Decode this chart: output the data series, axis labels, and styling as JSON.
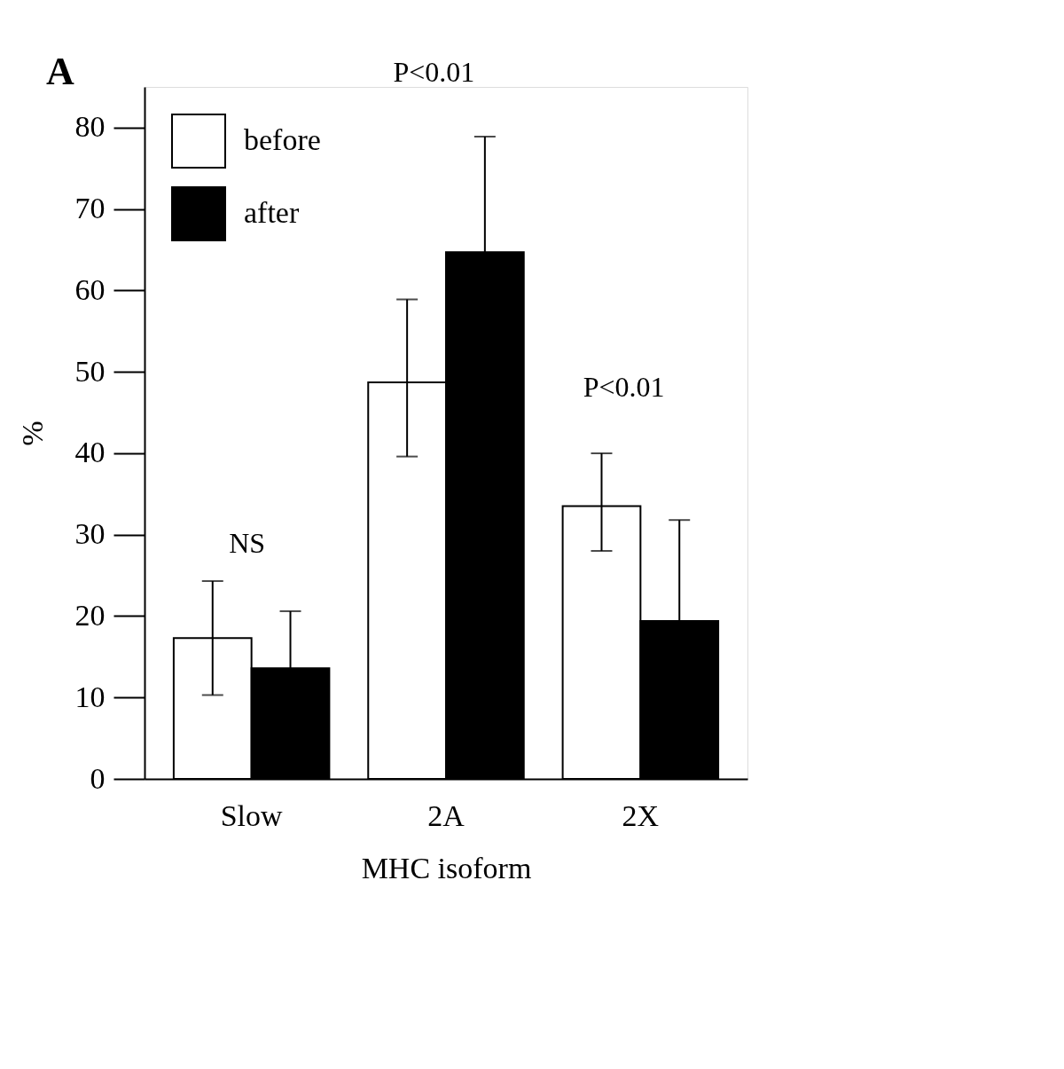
{
  "chart_data": {
    "type": "bar",
    "xlabel": "MHC isoform",
    "ylabel": "%",
    "categories": [
      "Slow",
      "2A",
      "2X"
    ],
    "series": [
      {
        "name": "before",
        "color": "#ffffff",
        "values": [
          17.3,
          48.7,
          33.5
        ],
        "errors": [
          7,
          [
            39.6,
            58.9
          ],
          [
            28,
            40
          ]
        ]
      },
      {
        "name": "after",
        "color": "#000000",
        "values": [
          13.6,
          64.7,
          19.4
        ],
        "errors": [
          7,
          14.2,
          12.4
        ]
      }
    ],
    "ylim": [
      0,
      85
    ],
    "yticks": [
      0,
      10,
      20,
      30,
      40,
      50,
      60,
      70,
      80
    ],
    "grid": false,
    "legend": "top left",
    "annotations": [
      "A",
      "NS",
      "P<0.01",
      "P<0.01"
    ]
  }
}
